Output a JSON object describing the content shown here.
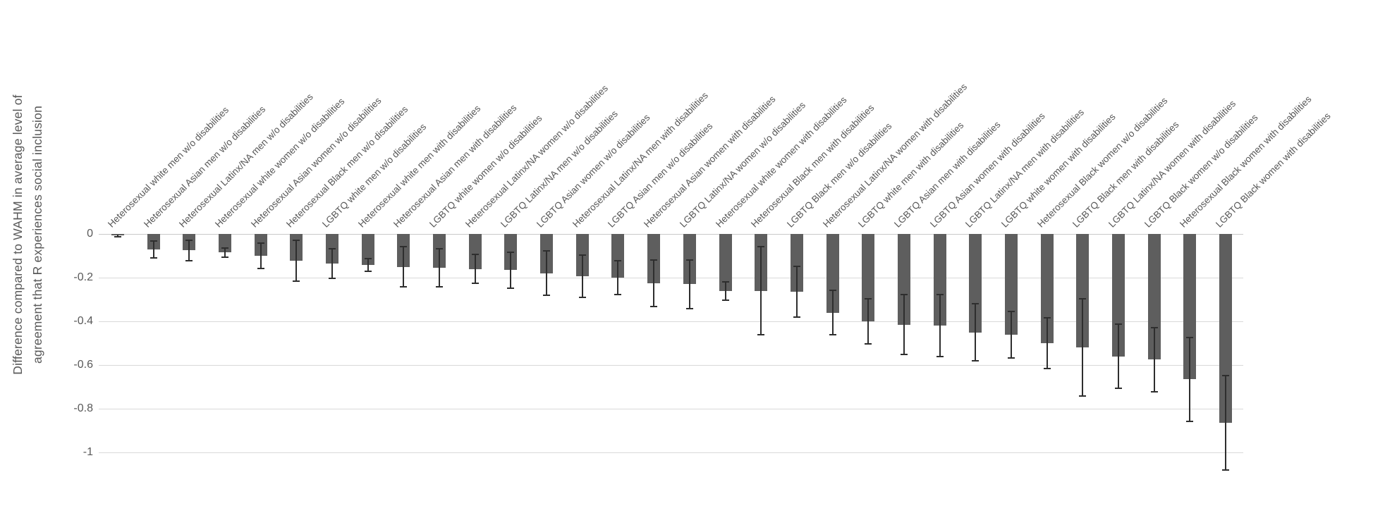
{
  "chart_data": {
    "type": "bar",
    "title": "",
    "ylabel": "Difference compared to WAHM in average level of agreement that R experiences social inclusion",
    "ylabel_line1": "Difference compared to WAHM in average level of",
    "ylabel_line2": "agreement that R experiences social inclusion",
    "xlabel": "",
    "ylim": [
      -1.1,
      0
    ],
    "grid": true,
    "legend_position": "none",
    "bar_color": "#5e5e5e",
    "error_bar_color": "#2e2e2e",
    "gridline_color": "#d9d9d9",
    "text_color": "#595959",
    "yticks": [
      0,
      -0.2,
      -0.4,
      -0.6,
      -0.8,
      -1
    ],
    "ytick_labels": [
      "0",
      "-0.2",
      "-0.4",
      "-0.6",
      "-0.8",
      "-1"
    ],
    "categories": [
      "Heterosexual white men w/o disabilities",
      "Heterosexual Asian men w/o disabilities",
      "Heterosexual Latinx/NA men w/o disabilities",
      "Heterosexual white women w/o disabilities",
      "Heterosexual Asian women w/o disabilities",
      "Heterosexual Black men w/o disabilities",
      "LGBTQ white men w/o disabilities",
      "Heterosexual white men with disabilities",
      "Heterosexual Asian men with disabilities",
      "LGBTQ white women w/o disabilities",
      "Heterosexual Latinx/NA women w/o disabilities",
      "LGBTQ Latinx/NA men w/o disabilities",
      "LGBTQ Asian women w/o disabilities",
      "Heterosexual Latinx/NA men with disabilities",
      "LGBTQ Asian men w/o disabilities",
      "Heterosexual Asian women with disabilities",
      "LGBTQ Latinx/NA women w/o disabilities",
      "Heterosexual white women with disabilities",
      "Heterosexual Black men with disabilities",
      "LGBTQ Black men w/o disabilities",
      "Heterosexual Latinx/NA women with disabilities",
      "LGBTQ white men with disabilities",
      "LGBTQ Asian men with disabilities",
      "LGBTQ Asian women with disabilities",
      "LGBTQ Latinx/NA men with disabilities",
      "LGBTQ white women with disabilities",
      "Heterosexual Black women w/o disabilities",
      "LGBTQ Black men with disabilities",
      "LGBTQ Latinx/NA women with disabilities",
      "LGBTQ Black women w/o disabilities",
      "Heterosexual Black women with disabilities",
      "LGBTQ Black women with disabilities"
    ],
    "values": [
      -0.005,
      -0.07,
      -0.075,
      -0.085,
      -0.1,
      -0.122,
      -0.135,
      -0.143,
      -0.15,
      -0.155,
      -0.16,
      -0.165,
      -0.18,
      -0.195,
      -0.2,
      -0.225,
      -0.23,
      -0.26,
      -0.26,
      -0.265,
      -0.36,
      -0.4,
      -0.415,
      -0.42,
      -0.45,
      -0.46,
      -0.5,
      -0.52,
      -0.56,
      -0.575,
      -0.665,
      -0.865
    ],
    "error_margins": [
      0.012,
      0.042,
      0.05,
      0.025,
      0.062,
      0.097,
      0.072,
      0.032,
      0.096,
      0.09,
      0.07,
      0.085,
      0.105,
      0.1,
      0.08,
      0.11,
      0.115,
      0.045,
      0.205,
      0.12,
      0.105,
      0.105,
      0.14,
      0.145,
      0.135,
      0.11,
      0.12,
      0.225,
      0.15,
      0.15,
      0.195,
      0.22
    ]
  }
}
